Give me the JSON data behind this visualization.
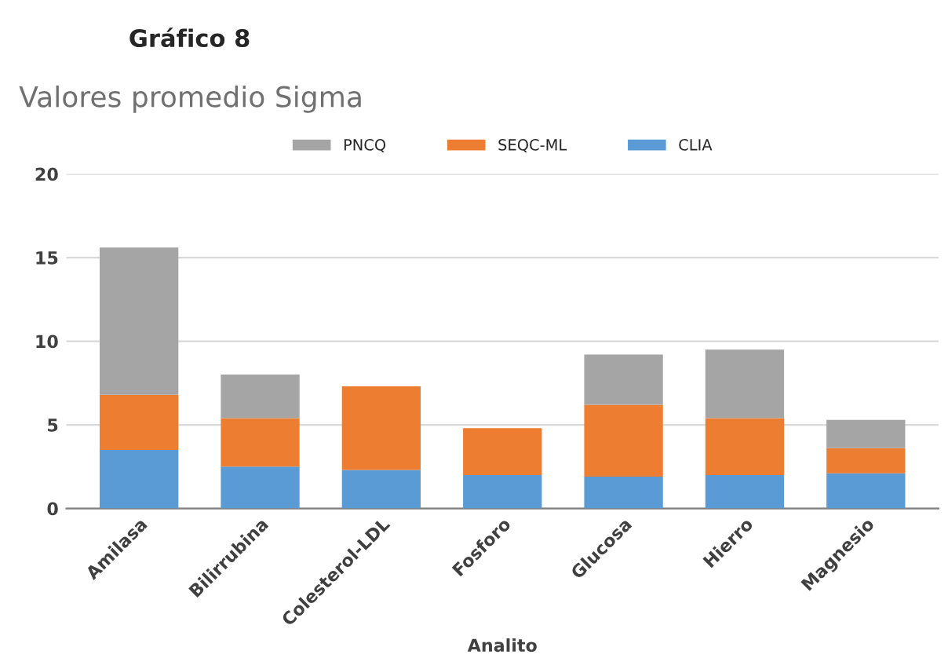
{
  "chart_data": {
    "type": "bar",
    "stacked": true,
    "annotations": [
      "Gráfico 8"
    ],
    "title": "Valores promedio Sigma",
    "xlabel": "Analito",
    "categories": [
      "Amilasa",
      "Bilirrubina",
      "Colesterol-LDL",
      "Fosforo",
      "Glucosa",
      "Hierro",
      "Magnesio"
    ],
    "series": [
      {
        "name": "CLIA",
        "color": "#5b9bd5",
        "values": [
          3.5,
          2.5,
          2.3,
          2.0,
          1.9,
          2.0,
          2.1
        ]
      },
      {
        "name": "SEQC-ML",
        "color": "#ed7d31",
        "values": [
          3.3,
          2.9,
          5.0,
          2.8,
          4.3,
          3.4,
          1.5
        ]
      },
      {
        "name": "PNCQ",
        "color": "#a5a5a5",
        "values": [
          8.8,
          2.6,
          null,
          null,
          3.0,
          4.1,
          1.7
        ]
      }
    ],
    "ylim": [
      0,
      20
    ],
    "yticks": [
      0,
      5,
      10,
      15,
      20
    ],
    "grid": "y",
    "legend": "top"
  }
}
